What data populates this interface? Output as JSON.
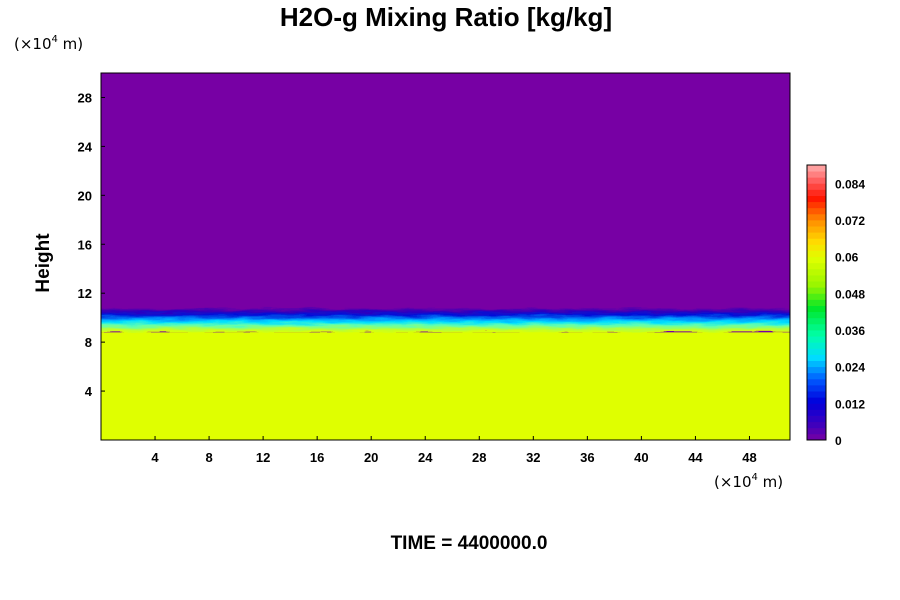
{
  "chart_data": {
    "type": "heatmap",
    "title": "H2O-g Mixing Ratio [kg/kg]",
    "ylabel": "Height",
    "x_unit": {
      "prefix": "(×10",
      "exp": "4",
      "suffix": " m)"
    },
    "y_unit": {
      "prefix": "(×10",
      "exp": "4",
      "suffix": " m)"
    },
    "xlim": [
      0,
      51
    ],
    "ylim": [
      0,
      30
    ],
    "x_ticks": [
      "4",
      "8",
      "12",
      "16",
      "20",
      "24",
      "28",
      "32",
      "36",
      "40",
      "44",
      "48"
    ],
    "y_ticks": [
      "4",
      "8",
      "12",
      "16",
      "20",
      "24",
      "28"
    ],
    "field": {
      "lower_layer": {
        "top_height": 8.8,
        "value": 0.059,
        "color": "#dfff00"
      },
      "upper_layer": {
        "value": 0.0,
        "color": "#7700a4"
      },
      "transition_band": {
        "from_height": 8.8,
        "to_height": 10.8
      }
    },
    "colorbar": {
      "range": [
        0,
        0.09
      ],
      "ticks": [
        "0",
        "0.012",
        "0.024",
        "0.036",
        "0.048",
        "0.06",
        "0.072",
        "0.084"
      ],
      "tick_values": [
        0,
        0.012,
        0.024,
        0.036,
        0.048,
        0.06,
        0.072,
        0.084
      ],
      "levels": 45
    },
    "footer": "TIME = 4400000.0"
  }
}
